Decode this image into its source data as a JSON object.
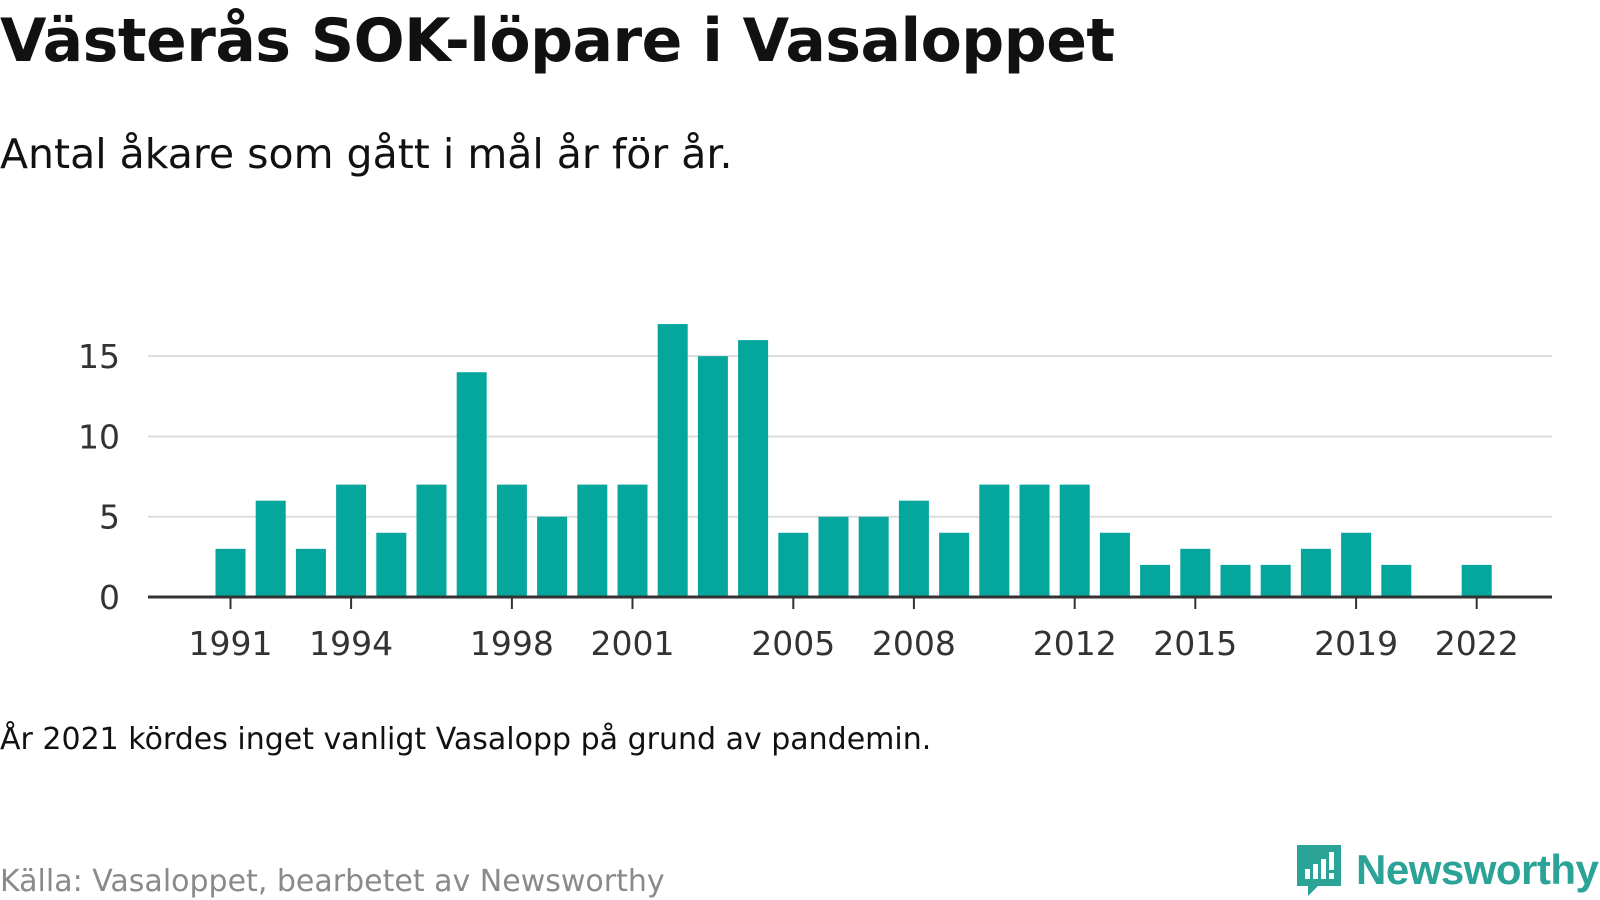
{
  "header": {
    "title": "Västerås SOK-löpare i Vasaloppet",
    "subtitle": "Antal åkare som gått i mål år för år."
  },
  "footer": {
    "note": "År 2021 kördes inget vanligt Vasalopp på grund av pandemin.",
    "source": "Källa: Vasaloppet, bearbetet av Newsworthy",
    "brand": "Newsworthy"
  },
  "colors": {
    "bar": "#05a69c",
    "grid": "#dddddd",
    "axis": "#333333",
    "brand": "#2ca397"
  },
  "icons": {
    "brand_logo": "newsworthy-logo-icon"
  },
  "chart_data": {
    "type": "bar",
    "title": "Västerås SOK-löpare i Vasaloppet",
    "subtitle": "Antal åkare som gått i mål år för år.",
    "xlabel": "",
    "ylabel": "",
    "ylim": [
      0,
      18
    ],
    "yticks": [
      0,
      5,
      10,
      15
    ],
    "x_tick_labels": [
      1991,
      1994,
      1998,
      2001,
      2005,
      2008,
      2012,
      2015,
      2019,
      2022
    ],
    "grid": true,
    "legend": "none",
    "categories": [
      1991,
      1992,
      1993,
      1994,
      1995,
      1996,
      1997,
      1998,
      1999,
      2000,
      2001,
      2002,
      2003,
      2004,
      2005,
      2006,
      2007,
      2008,
      2009,
      2010,
      2011,
      2012,
      2013,
      2014,
      2015,
      2016,
      2017,
      2018,
      2019,
      2020,
      2021,
      2022
    ],
    "values": [
      3,
      6,
      3,
      7,
      4,
      7,
      14,
      7,
      5,
      7,
      7,
      17,
      15,
      16,
      4,
      5,
      5,
      6,
      4,
      7,
      7,
      7,
      4,
      2,
      3,
      2,
      2,
      3,
      4,
      2,
      null,
      2
    ]
  }
}
